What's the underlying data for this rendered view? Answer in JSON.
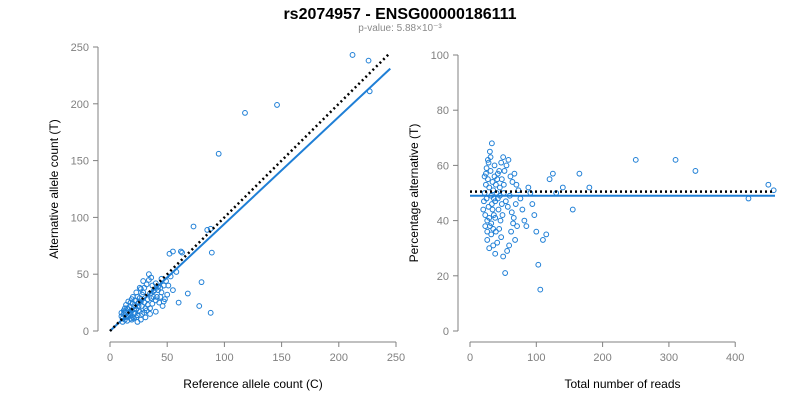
{
  "title": "rs2074957 - ENSG00000186111",
  "subtitle": "p-value: 5.88×10⁻³",
  "colors": {
    "point": "#1f7fd6",
    "fit_line": "#1f7fd6",
    "expected_line": "#000000",
    "axis": "#808080"
  },
  "chart_data": [
    {
      "type": "scatter",
      "xlabel": "Reference allele count (C)",
      "ylabel": "Alternative allele count (T)",
      "xlim": [
        0,
        250
      ],
      "ylim": [
        0,
        250
      ],
      "xticks": [
        0,
        50,
        100,
        150,
        200,
        250
      ],
      "yticks": [
        0,
        50,
        100,
        150,
        200,
        250
      ],
      "grid": false,
      "points": [
        [
          212,
          243
        ],
        [
          226,
          238
        ],
        [
          227,
          211
        ],
        [
          146,
          199
        ],
        [
          118,
          192
        ],
        [
          95,
          156
        ],
        [
          73,
          92
        ],
        [
          88,
          90
        ],
        [
          85,
          89
        ],
        [
          89,
          69
        ],
        [
          63,
          69
        ],
        [
          62,
          70
        ],
        [
          80,
          43
        ],
        [
          78,
          22
        ],
        [
          88,
          16
        ],
        [
          52,
          68
        ],
        [
          55,
          70
        ],
        [
          51,
          40
        ],
        [
          55,
          36
        ],
        [
          60,
          25
        ],
        [
          68,
          33
        ],
        [
          45,
          46
        ],
        [
          47,
          40
        ],
        [
          44,
          38
        ],
        [
          40,
          42
        ],
        [
          42,
          36
        ],
        [
          38,
          30
        ],
        [
          35,
          33
        ],
        [
          37,
          40
        ],
        [
          33,
          28
        ],
        [
          30,
          25
        ],
        [
          28,
          32
        ],
        [
          31,
          20
        ],
        [
          27,
          26
        ],
        [
          25,
          18
        ],
        [
          22,
          22
        ],
        [
          20,
          24
        ],
        [
          18,
          16
        ],
        [
          16,
          14
        ],
        [
          15,
          20
        ],
        [
          14,
          12
        ],
        [
          13,
          17
        ],
        [
          12,
          15
        ],
        [
          11,
          11
        ],
        [
          10,
          13
        ],
        [
          20,
          12
        ],
        [
          21,
          15
        ],
        [
          23,
          19
        ],
        [
          24,
          14
        ],
        [
          26,
          17
        ],
        [
          25,
          22
        ],
        [
          19,
          18
        ],
        [
          17,
          21
        ],
        [
          18,
          25
        ],
        [
          22,
          27
        ],
        [
          24,
          30
        ],
        [
          29,
          34
        ],
        [
          27,
          37
        ],
        [
          32,
          41
        ],
        [
          34,
          45
        ],
        [
          36,
          47
        ],
        [
          39,
          36
        ],
        [
          41,
          30
        ],
        [
          43,
          25
        ],
        [
          46,
          22
        ],
        [
          48,
          28
        ],
        [
          50,
          32
        ],
        [
          16,
          19
        ],
        [
          14,
          23
        ],
        [
          12,
          18
        ],
        [
          13,
          10
        ],
        [
          15,
          13
        ],
        [
          17,
          15
        ],
        [
          19,
          10
        ],
        [
          21,
          11
        ],
        [
          23,
          12
        ],
        [
          28,
          15
        ],
        [
          30,
          16
        ],
        [
          32,
          18
        ],
        [
          35,
          20
        ],
        [
          37,
          24
        ],
        [
          40,
          27
        ],
        [
          44,
          30
        ],
        [
          49,
          44
        ],
        [
          53,
          48
        ],
        [
          58,
          52
        ],
        [
          20,
          30
        ],
        [
          26,
          29
        ],
        [
          30,
          38
        ],
        [
          15,
          9
        ],
        [
          18,
          11
        ],
        [
          22,
          16
        ],
        [
          25,
          25
        ],
        [
          28,
          22
        ],
        [
          33,
          23
        ],
        [
          36,
          29
        ],
        [
          38,
          35
        ],
        [
          42,
          39
        ],
        [
          45,
          34
        ],
        [
          47,
          26
        ],
        [
          35,
          15
        ],
        [
          40,
          17
        ],
        [
          31,
          12
        ],
        [
          27,
          10
        ],
        [
          24,
          8
        ],
        [
          11,
          8
        ],
        [
          10,
          16
        ],
        [
          13,
          20
        ],
        [
          16,
          26
        ],
        [
          19,
          28
        ],
        [
          23,
          34
        ],
        [
          26,
          38
        ],
        [
          29,
          44
        ],
        [
          34,
          50
        ]
      ],
      "fit_line": {
        "from": [
          0,
          0
        ],
        "to": [
          245,
          231
        ]
      },
      "expected_line": {
        "from": [
          0,
          0
        ],
        "to": [
          245,
          245
        ]
      }
    },
    {
      "type": "scatter",
      "xlabel": "Total number of reads",
      "ylabel": "Percentage alternative (T)",
      "xlim": [
        0,
        460
      ],
      "ylim": [
        0,
        100
      ],
      "xticks": [
        0,
        100,
        200,
        300,
        400
      ],
      "yticks": [
        0,
        20,
        40,
        60,
        80,
        100
      ],
      "grid": false,
      "points": [
        [
          20,
          44
        ],
        [
          21,
          47
        ],
        [
          22,
          50
        ],
        [
          23,
          42
        ],
        [
          24,
          53
        ],
        [
          25,
          48
        ],
        [
          26,
          40
        ],
        [
          27,
          55
        ],
        [
          28,
          45
        ],
        [
          29,
          52
        ],
        [
          30,
          38
        ],
        [
          31,
          58
        ],
        [
          32,
          49
        ],
        [
          33,
          46
        ],
        [
          34,
          44
        ],
        [
          35,
          51
        ],
        [
          36,
          42
        ],
        [
          37,
          60
        ],
        [
          38,
          47
        ],
        [
          39,
          36
        ],
        [
          24,
          57
        ],
        [
          27,
          62
        ],
        [
          30,
          65
        ],
        [
          33,
          68
        ],
        [
          26,
          33
        ],
        [
          29,
          30
        ],
        [
          32,
          35
        ],
        [
          35,
          31
        ],
        [
          38,
          28
        ],
        [
          41,
          32
        ],
        [
          22,
          56
        ],
        [
          25,
          59
        ],
        [
          28,
          61
        ],
        [
          31,
          63
        ],
        [
          34,
          54
        ],
        [
          37,
          56
        ],
        [
          40,
          50
        ],
        [
          43,
          44
        ],
        [
          46,
          40
        ],
        [
          49,
          42
        ],
        [
          42,
          48
        ],
        [
          45,
          52
        ],
        [
          48,
          46
        ],
        [
          51,
          50
        ],
        [
          54,
          47
        ],
        [
          57,
          45
        ],
        [
          60,
          49
        ],
        [
          63,
          43
        ],
        [
          66,
          41
        ],
        [
          69,
          46
        ],
        [
          44,
          37
        ],
        [
          47,
          34
        ],
        [
          50,
          27
        ],
        [
          53,
          21
        ],
        [
          56,
          29
        ],
        [
          59,
          31
        ],
        [
          62,
          36
        ],
        [
          65,
          39
        ],
        [
          68,
          33
        ],
        [
          71,
          38
        ],
        [
          52,
          58
        ],
        [
          55,
          60
        ],
        [
          58,
          62
        ],
        [
          61,
          56
        ],
        [
          64,
          54
        ],
        [
          67,
          57
        ],
        [
          70,
          53
        ],
        [
          73,
          51
        ],
        [
          76,
          48
        ],
        [
          79,
          44
        ],
        [
          82,
          40
        ],
        [
          85,
          38
        ],
        [
          88,
          52
        ],
        [
          91,
          50
        ],
        [
          94,
          46
        ],
        [
          97,
          42
        ],
        [
          100,
          36
        ],
        [
          103,
          24
        ],
        [
          106,
          15
        ],
        [
          110,
          33
        ],
        [
          115,
          35
        ],
        [
          120,
          55
        ],
        [
          125,
          57
        ],
        [
          130,
          50
        ],
        [
          140,
          52
        ],
        [
          155,
          44
        ],
        [
          165,
          57
        ],
        [
          180,
          52
        ],
        [
          250,
          62
        ],
        [
          310,
          62
        ],
        [
          340,
          58
        ],
        [
          420,
          48
        ],
        [
          450,
          53
        ],
        [
          458,
          51
        ],
        [
          23,
          38
        ],
        [
          26,
          36
        ],
        [
          29,
          41
        ],
        [
          32,
          39
        ],
        [
          35,
          37
        ],
        [
          38,
          41
        ],
        [
          41,
          55
        ],
        [
          44,
          58
        ],
        [
          47,
          61
        ],
        [
          50,
          63
        ],
        [
          36,
          48
        ],
        [
          39,
          53
        ],
        [
          42,
          57
        ],
        [
          45,
          49
        ],
        [
          48,
          55
        ],
        [
          51,
          53
        ]
      ],
      "fit_line": {
        "from": [
          0,
          49
        ],
        "to": [
          460,
          49
        ]
      },
      "expected_line": {
        "from": [
          0,
          50.5
        ],
        "to": [
          460,
          50.5
        ]
      }
    }
  ]
}
